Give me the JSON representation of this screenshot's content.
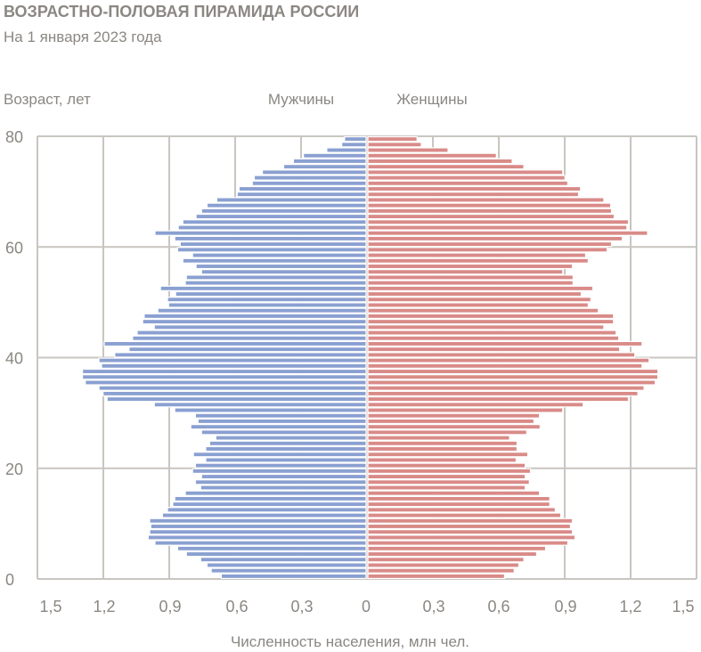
{
  "chart_data": {
    "type": "bar",
    "orientation": "horizontal-pyramid",
    "title": "ВОЗРАСТНО-ПОЛОВАЯ ПИРАМИДА РОССИИ",
    "subtitle": "На 1 января 2023 года",
    "ylabel": "Возраст, лет",
    "xlabel": "Численность населения, млн чел.",
    "xlim": [
      -1.5,
      1.5
    ],
    "ylim": [
      0,
      80
    ],
    "x_ticks": [
      "1,5",
      "1,2",
      "0,9",
      "0,6",
      "0,3",
      "0",
      "0,3",
      "0,6",
      "0,9",
      "1,2",
      "1,5"
    ],
    "y_ticks": [
      "0",
      "20",
      "40",
      "60",
      "80"
    ],
    "grid": true,
    "legend_position": "top-center",
    "categories": [
      0,
      1,
      2,
      3,
      4,
      5,
      6,
      7,
      8,
      9,
      10,
      11,
      12,
      13,
      14,
      15,
      16,
      17,
      18,
      19,
      20,
      21,
      22,
      23,
      24,
      25,
      26,
      27,
      28,
      29,
      30,
      31,
      32,
      33,
      34,
      35,
      36,
      37,
      38,
      39,
      40,
      41,
      42,
      43,
      44,
      45,
      46,
      47,
      48,
      49,
      50,
      51,
      52,
      53,
      54,
      55,
      56,
      57,
      58,
      59,
      60,
      61,
      62,
      63,
      64,
      65,
      66,
      67,
      68,
      69,
      70,
      71,
      72,
      73,
      74,
      75,
      76,
      77,
      78,
      79
    ],
    "series": [
      {
        "name": "Мужчины",
        "side": "left",
        "color": "#8aa0d1",
        "label_color": "#5b7cc9",
        "values": [
          0.663,
          0.709,
          0.728,
          0.757,
          0.822,
          0.862,
          0.965,
          0.996,
          0.989,
          0.984,
          0.989,
          0.931,
          0.908,
          0.884,
          0.875,
          0.827,
          0.757,
          0.781,
          0.753,
          0.794,
          0.781,
          0.734,
          0.79,
          0.734,
          0.716,
          0.688,
          0.753,
          0.802,
          0.769,
          0.781,
          0.875,
          0.968,
          1.183,
          1.201,
          1.22,
          1.282,
          1.295,
          1.295,
          1.208,
          1.22,
          1.148,
          1.083,
          1.196,
          1.067,
          1.046,
          0.968,
          1.021,
          1.014,
          0.952,
          0.903,
          0.908,
          0.871,
          0.94,
          0.827,
          0.822,
          0.753,
          0.778,
          0.838,
          0.794,
          0.862,
          0.85,
          0.875,
          0.965,
          0.859,
          0.838,
          0.778,
          0.753,
          0.728,
          0.684,
          0.591,
          0.582,
          0.522,
          0.513,
          0.476,
          0.379,
          0.335,
          0.289,
          0.183,
          0.115,
          0.102
        ]
      },
      {
        "name": "Женщины",
        "side": "right",
        "color": "#d98b88",
        "label_color": "#d9716d",
        "values": [
          0.626,
          0.67,
          0.691,
          0.714,
          0.772,
          0.813,
          0.914,
          0.947,
          0.935,
          0.926,
          0.935,
          0.882,
          0.857,
          0.832,
          0.832,
          0.785,
          0.72,
          0.739,
          0.72,
          0.744,
          0.72,
          0.679,
          0.732,
          0.683,
          0.683,
          0.649,
          0.727,
          0.788,
          0.76,
          0.785,
          0.891,
          0.984,
          1.19,
          1.233,
          1.261,
          1.312,
          1.324,
          1.324,
          1.252,
          1.284,
          1.219,
          1.15,
          1.252,
          1.146,
          1.134,
          1.078,
          1.122,
          1.122,
          1.053,
          1.007,
          1.019,
          0.975,
          1.028,
          0.938,
          0.938,
          0.891,
          0.935,
          1.007,
          0.995,
          1.093,
          1.113,
          1.162,
          1.277,
          1.183,
          1.19,
          1.125,
          1.113,
          1.109,
          1.078,
          0.963,
          0.972,
          0.914,
          0.901,
          0.891,
          0.714,
          0.661,
          0.589,
          0.369,
          0.247,
          0.228
        ]
      }
    ],
    "colors": {
      "grid": "#c9c5c0",
      "text": "#8b8782"
    }
  }
}
